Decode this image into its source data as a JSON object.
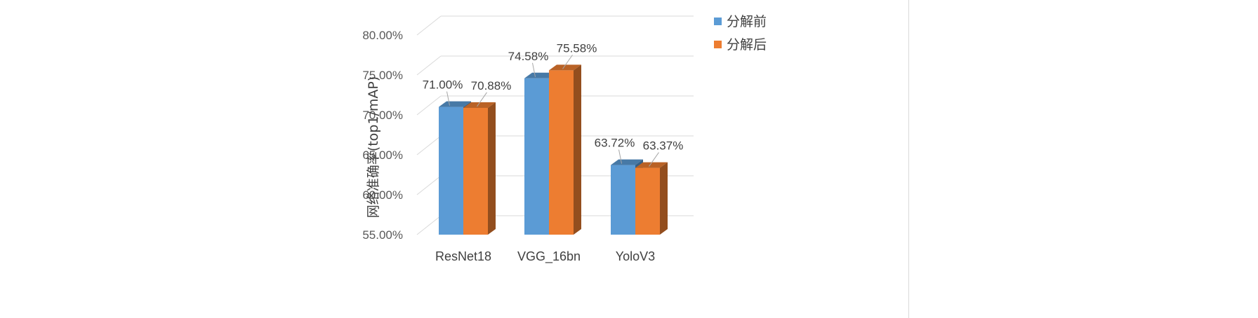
{
  "chart_data": {
    "type": "bar",
    "style": "3d-clustered-column",
    "categories": [
      "ResNet18",
      "VGG_16bn",
      "YoloV3"
    ],
    "series": [
      {
        "name": "分解前",
        "values": [
          71.0,
          74.58,
          63.72
        ],
        "labels": [
          "71.00%",
          "74.58%",
          "63.72%"
        ],
        "color": "#5B9BD5"
      },
      {
        "name": "分解后",
        "values": [
          70.88,
          75.58,
          63.37
        ],
        "labels": [
          "70.88%",
          "75.58%",
          "63.37%"
        ],
        "color": "#ED7D31"
      }
    ],
    "ylabel": "网络准确率(top1/mAP)",
    "xlabel": "",
    "ylim": [
      55,
      80
    ],
    "ytick_step": 5,
    "ytick_labels": [
      "55.00%",
      "60.00%",
      "65.00%",
      "70.00%",
      "75.00%",
      "80.00%"
    ],
    "grid": true,
    "legend_position": "top-right"
  }
}
